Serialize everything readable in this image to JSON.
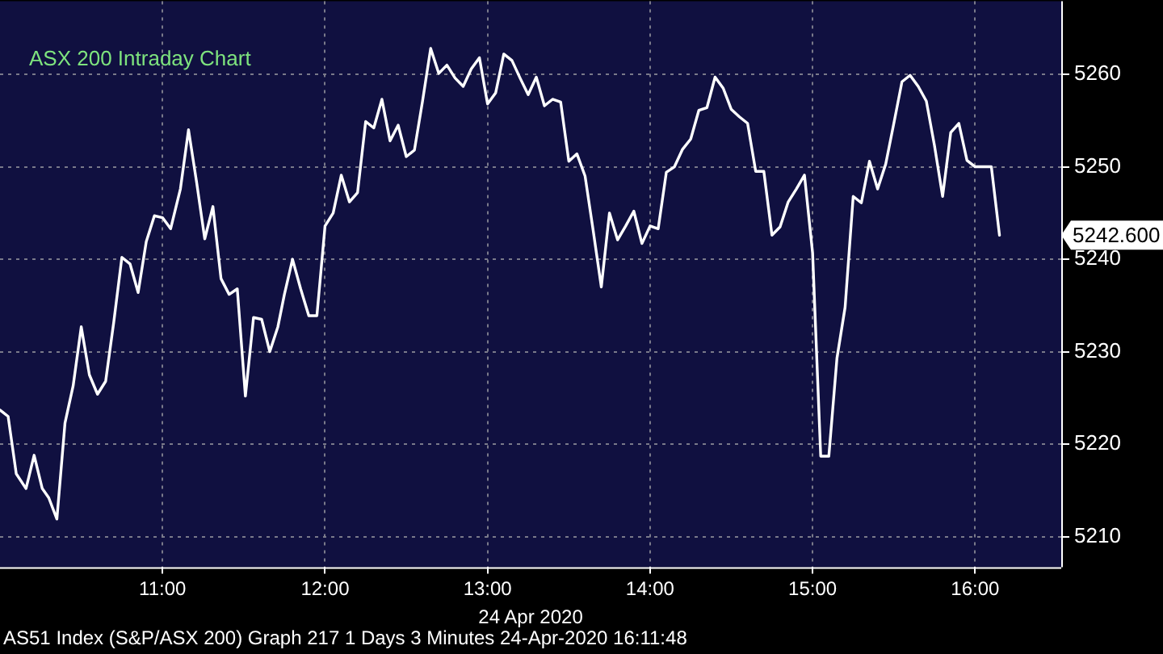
{
  "chart_data": {
    "type": "line",
    "title": "ASX 200 Intraday Chart",
    "xlabel": "24 Apr 2020",
    "x": [
      10.0,
      10.05,
      10.1,
      10.16,
      10.21,
      10.26,
      10.3,
      10.35,
      10.4,
      10.45,
      10.5,
      10.55,
      10.6,
      10.65,
      10.7,
      10.75,
      10.8,
      10.85,
      10.9,
      10.95,
      11.0,
      11.05,
      11.11,
      11.16,
      11.21,
      11.26,
      11.31,
      11.36,
      11.41,
      11.46,
      11.51,
      11.56,
      11.61,
      11.66,
      11.71,
      11.75,
      11.8,
      11.85,
      11.9,
      11.95,
      12.0,
      12.05,
      12.1,
      12.15,
      12.2,
      12.25,
      12.3,
      12.35,
      12.4,
      12.45,
      12.5,
      12.55,
      12.6,
      12.65,
      12.7,
      12.75,
      12.8,
      12.85,
      12.9,
      12.95,
      13.0,
      13.05,
      13.1,
      13.15,
      13.2,
      13.25,
      13.3,
      13.35,
      13.4,
      13.45,
      13.5,
      13.55,
      13.6,
      13.65,
      13.7,
      13.75,
      13.8,
      13.85,
      13.9,
      13.95,
      14.0,
      14.05,
      14.1,
      14.15,
      14.2,
      14.25,
      14.3,
      14.35,
      14.4,
      14.45,
      14.5,
      14.55,
      14.6,
      14.65,
      14.7,
      14.75,
      14.8,
      14.85,
      14.9,
      14.95,
      15.0,
      15.05,
      15.1,
      15.15,
      15.2,
      15.25,
      15.3,
      15.35,
      15.4,
      15.45,
      15.5,
      15.55,
      15.6,
      15.65,
      15.7,
      15.75,
      15.8,
      15.85,
      15.9,
      15.95,
      16.0,
      16.05,
      16.1,
      16.15
    ],
    "series": [
      {
        "color": "#ffffff",
        "values": [
          5223.7,
          5223.0,
          5216.8,
          5215.2,
          5218.8,
          5215.2,
          5214.2,
          5211.9,
          5222.3,
          5226.3,
          5232.7,
          5227.5,
          5225.4,
          5226.8,
          5233.2,
          5240.2,
          5239.5,
          5236.4,
          5241.9,
          5244.7,
          5244.5,
          5243.3,
          5247.6,
          5254.0,
          5248.3,
          5242.2,
          5245.7,
          5237.9,
          5236.2,
          5236.8,
          5225.2,
          5233.7,
          5233.5,
          5230.0,
          5232.7,
          5236.2,
          5240.0,
          5236.8,
          5233.9,
          5233.9,
          5243.6,
          5245.0,
          5249.1,
          5246.2,
          5247.2,
          5254.9,
          5254.2,
          5257.3,
          5252.8,
          5254.5,
          5251.1,
          5251.8,
          5257.1,
          5262.8,
          5260.1,
          5261.0,
          5259.6,
          5258.7,
          5260.6,
          5261.8,
          5256.8,
          5258.0,
          5262.2,
          5261.5,
          5259.6,
          5257.8,
          5259.7,
          5256.6,
          5257.3,
          5257.0,
          5250.6,
          5251.4,
          5249.0,
          5243.1,
          5237.0,
          5245.0,
          5242.1,
          5243.6,
          5245.2,
          5241.7,
          5243.6,
          5243.3,
          5249.4,
          5250.0,
          5251.9,
          5253.0,
          5256.1,
          5256.4,
          5259.7,
          5258.5,
          5256.2,
          5255.4,
          5254.7,
          5249.5,
          5249.5,
          5242.6,
          5243.5,
          5246.2,
          5247.6,
          5249.1,
          5240.7,
          5218.7,
          5218.7,
          5229.3,
          5234.8,
          5246.8,
          5246.1,
          5250.6,
          5247.6,
          5250.3,
          5254.7,
          5259.2,
          5259.9,
          5258.7,
          5257.1,
          5252.3,
          5246.8,
          5253.7,
          5254.7,
          5250.7,
          5250.0,
          5250.0,
          5250.0,
          5242.6
        ]
      }
    ],
    "xlim": [
      10.0,
      16.53
    ],
    "xticks": [
      {
        "value": 11,
        "label": "11:00"
      },
      {
        "value": 12,
        "label": "12:00"
      },
      {
        "value": 13,
        "label": "13:00"
      },
      {
        "value": 14,
        "label": "14:00"
      },
      {
        "value": 15,
        "label": "15:00"
      },
      {
        "value": 16,
        "label": "16:00"
      }
    ],
    "ylim": [
      5206.7,
      5267.9
    ],
    "yticks": [
      5210,
      5220,
      5230,
      5240,
      5250,
      5260
    ],
    "grid": true,
    "legend": false,
    "marker": "none",
    "line_style": "solid",
    "annotations": [
      "5242.600",
      "AS51 Index (S&P/ASX 200) Graph 217 1 Days 3 Minutes 24-Apr-2020 16:11:48"
    ]
  }
}
